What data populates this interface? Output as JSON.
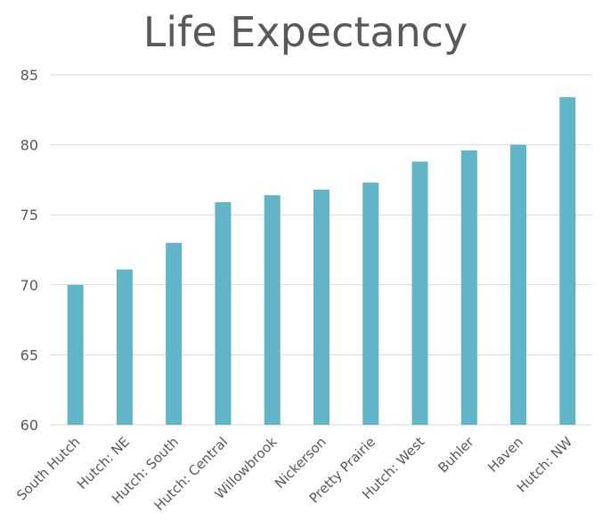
{
  "chart_data": {
    "type": "bar",
    "title": "Life Expectancy",
    "xlabel": "",
    "ylabel": "",
    "categories": [
      "South Hutch",
      "Hutch: NE",
      "Hutch: South",
      "Hutch: Central",
      "Willowbrook",
      "Nickerson",
      "Pretty Prairie",
      "Hutch: West",
      "Buhler",
      "Haven",
      "Hutch: NW"
    ],
    "values": [
      70.0,
      71.1,
      73.0,
      75.9,
      76.4,
      76.8,
      77.3,
      78.8,
      79.6,
      80.0,
      83.4
    ],
    "ylim": [
      60,
      85
    ],
    "yticks": [
      "60",
      "65",
      "70",
      "75",
      "80",
      "85"
    ],
    "grid": true,
    "legend": "none",
    "colors": {
      "bar": "#62B4C8",
      "grid": "#D9D9D9",
      "title": "#595959",
      "tick_label": "#595959"
    }
  }
}
